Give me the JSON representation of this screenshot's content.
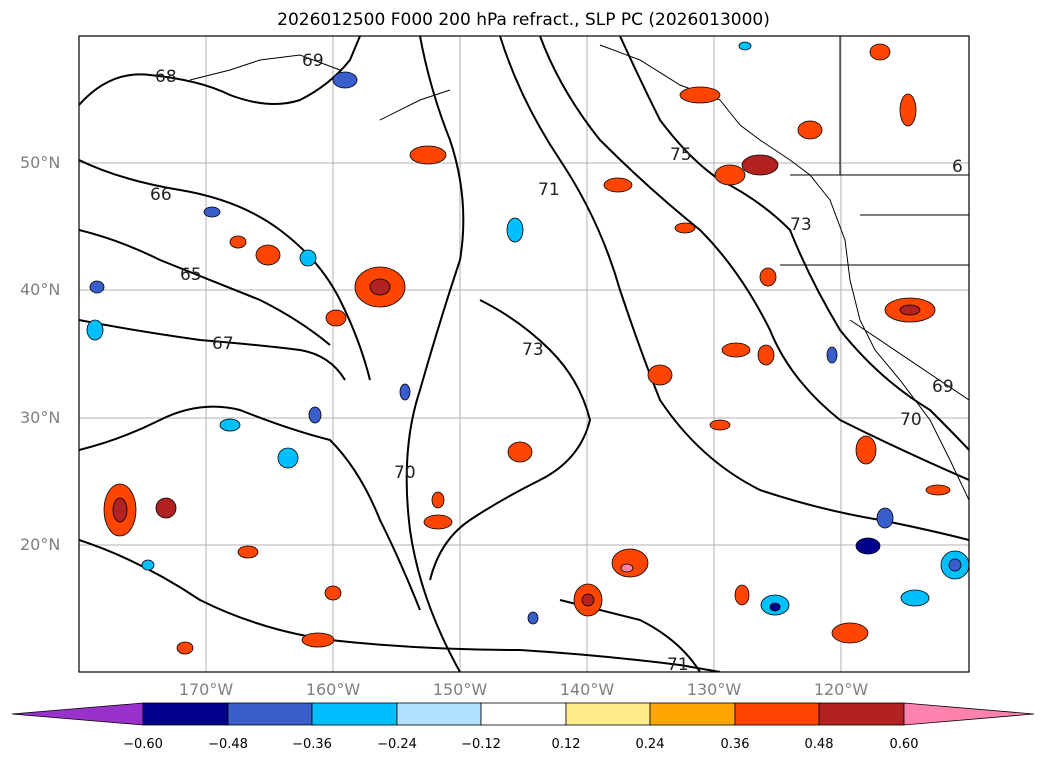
{
  "title": "2026012500 F000 200 hPa refract., SLP PC (2026013000)",
  "map": {
    "lat_labels": [
      "50°N",
      "40°N",
      "30°N",
      "20°N"
    ],
    "lon_labels": [
      "170°W",
      "160°W",
      "150°W",
      "140°W",
      "130°W",
      "120°W"
    ],
    "contour_labels": [
      "68",
      "69",
      "66",
      "65",
      "67",
      "71",
      "75",
      "73",
      "70",
      "71",
      "73",
      "69",
      "70",
      "6"
    ],
    "gridlines": true
  },
  "colorbar": {
    "colors": [
      "#9932cc",
      "#00008b",
      "#3a5fcd",
      "#00bfff",
      "#b0e2ff",
      "#ffffff",
      "#ffec8b",
      "#ffa500",
      "#ff4500",
      "#b22222",
      "#ff82ab"
    ],
    "ticks": [
      "−0.60",
      "−0.48",
      "−0.36",
      "−0.24",
      "−0.12",
      "0.12",
      "0.24",
      "0.36",
      "0.48",
      "0.60"
    ],
    "extend": "both"
  }
}
